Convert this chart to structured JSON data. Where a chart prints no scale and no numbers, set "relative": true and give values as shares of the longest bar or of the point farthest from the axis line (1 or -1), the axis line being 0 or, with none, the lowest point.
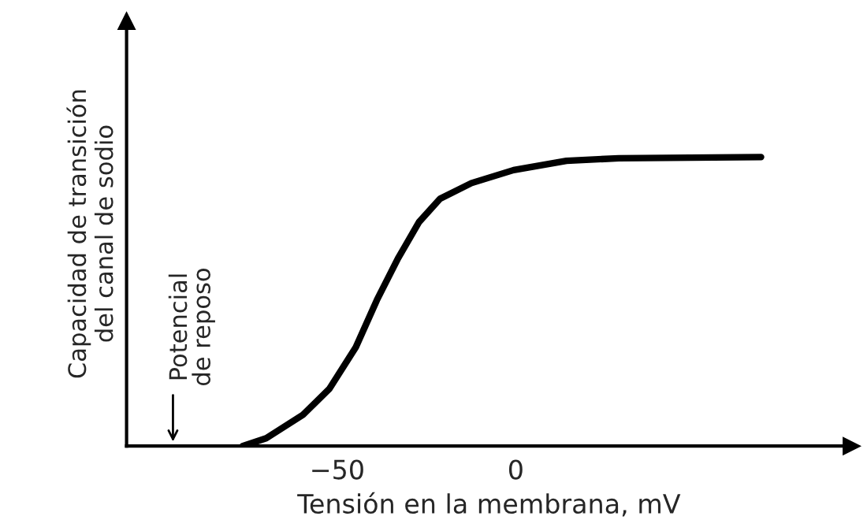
{
  "chart_data": {
    "type": "line",
    "relative": true,
    "xlabel": "Tensión en la membrana, mV",
    "ylabel": "Capacidad de transición\ndel canal de sodio",
    "x": [
      -76.5,
      -69.9,
      -59.6,
      -52.2,
      -44.8,
      -38.9,
      -33.0,
      -27.1,
      -21.2,
      -12.4,
      -0.6,
      14.2,
      28.9,
      68.7
    ],
    "series": [
      {
        "color": "#000000",
        "values": [
          0,
          0.027,
          0.108,
          0.198,
          0.342,
          0.505,
          0.649,
          0.775,
          0.856,
          0.91,
          0.955,
          0.987,
          0.996,
          1.0
        ]
      }
    ],
    "xlim": [
      -109,
      94
    ],
    "xticks": [
      {
        "value": -50,
        "label": "−50"
      },
      0
    ],
    "annotations": [
      "Potencial\nde reposo"
    ],
    "grid": false,
    "legend": false,
    "marker": "none",
    "line_style": "solid"
  }
}
